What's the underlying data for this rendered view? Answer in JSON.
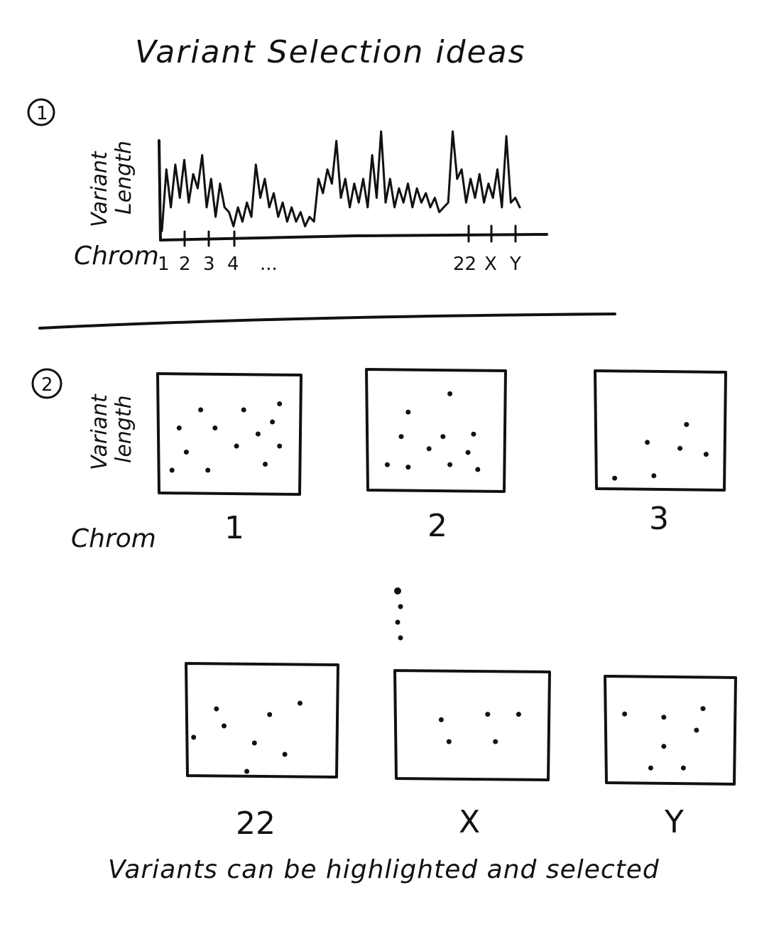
{
  "title": "Variant Selection ideas",
  "section1": {
    "number": "1",
    "y_axis_label_line1": "Variant",
    "y_axis_label_line2": "Length",
    "x_axis_label": "Chrom",
    "tick_labels_left": [
      "1",
      "2",
      "3",
      "4",
      "..."
    ],
    "tick_labels_right": [
      "22",
      "X",
      "Y"
    ],
    "signal": [
      0.05,
      0.7,
      0.3,
      0.75,
      0.4,
      0.8,
      0.35,
      0.65,
      0.5,
      0.85,
      0.3,
      0.6,
      0.2,
      0.55,
      0.3,
      0.25,
      0.1,
      0.3,
      0.15,
      0.35,
      0.2,
      0.75,
      0.4,
      0.6,
      0.3,
      0.45,
      0.2,
      0.35,
      0.15,
      0.3,
      0.15,
      0.25,
      0.1,
      0.2,
      0.15,
      0.6,
      0.45,
      0.7,
      0.55,
      1.0,
      0.4,
      0.6,
      0.3,
      0.55,
      0.35,
      0.6,
      0.3,
      0.85,
      0.4,
      1.1,
      0.35,
      0.6,
      0.3,
      0.5,
      0.35,
      0.55,
      0.3,
      0.5,
      0.35,
      0.45,
      0.3,
      0.4,
      0.25,
      0.3,
      0.35,
      1.1,
      0.6,
      0.7,
      0.35,
      0.6,
      0.4,
      0.65,
      0.35,
      0.55,
      0.4,
      0.7,
      0.3,
      1.05,
      0.35,
      0.4,
      0.3
    ]
  },
  "section2": {
    "number": "2",
    "y_axis_label_line1": "Variant",
    "y_axis_label_line2": "length",
    "x_axis_label": "Chrom",
    "panels_top": [
      {
        "label": "1",
        "points": [
          [
            0.3,
            0.3
          ],
          [
            0.6,
            0.3
          ],
          [
            0.85,
            0.25
          ],
          [
            0.8,
            0.4
          ],
          [
            0.15,
            0.45
          ],
          [
            0.4,
            0.45
          ],
          [
            0.7,
            0.5
          ],
          [
            0.2,
            0.65
          ],
          [
            0.55,
            0.6
          ],
          [
            0.85,
            0.6
          ],
          [
            0.1,
            0.8
          ],
          [
            0.35,
            0.8
          ],
          [
            0.75,
            0.75
          ]
        ]
      },
      {
        "label": "2",
        "points": [
          [
            0.6,
            0.2
          ],
          [
            0.3,
            0.35
          ],
          [
            0.25,
            0.55
          ],
          [
            0.55,
            0.55
          ],
          [
            0.77,
            0.53
          ],
          [
            0.45,
            0.65
          ],
          [
            0.73,
            0.68
          ],
          [
            0.15,
            0.78
          ],
          [
            0.3,
            0.8
          ],
          [
            0.6,
            0.78
          ],
          [
            0.8,
            0.82
          ]
        ]
      },
      {
        "label": "3",
        "points": [
          [
            0.7,
            0.45
          ],
          [
            0.4,
            0.6
          ],
          [
            0.65,
            0.65
          ],
          [
            0.85,
            0.7
          ],
          [
            0.15,
            0.9
          ],
          [
            0.45,
            0.88
          ]
        ]
      }
    ],
    "panels_bottom": [
      {
        "label": "22",
        "points": [
          [
            0.2,
            0.4
          ],
          [
            0.55,
            0.45
          ],
          [
            0.75,
            0.35
          ],
          [
            0.25,
            0.55
          ],
          [
            0.05,
            0.65
          ],
          [
            0.45,
            0.7
          ],
          [
            0.65,
            0.8
          ],
          [
            0.4,
            0.95
          ]
        ]
      },
      {
        "label": "X",
        "points": [
          [
            0.3,
            0.45
          ],
          [
            0.6,
            0.4
          ],
          [
            0.8,
            0.4
          ],
          [
            0.35,
            0.65
          ],
          [
            0.65,
            0.65
          ]
        ]
      },
      {
        "label": "Y",
        "points": [
          [
            0.15,
            0.35
          ],
          [
            0.45,
            0.38
          ],
          [
            0.75,
            0.3
          ],
          [
            0.7,
            0.5
          ],
          [
            0.45,
            0.65
          ],
          [
            0.35,
            0.85
          ],
          [
            0.6,
            0.85
          ]
        ]
      }
    ],
    "ellipsis_dots": 4,
    "caption": "Variants can be highlighted and selected"
  }
}
